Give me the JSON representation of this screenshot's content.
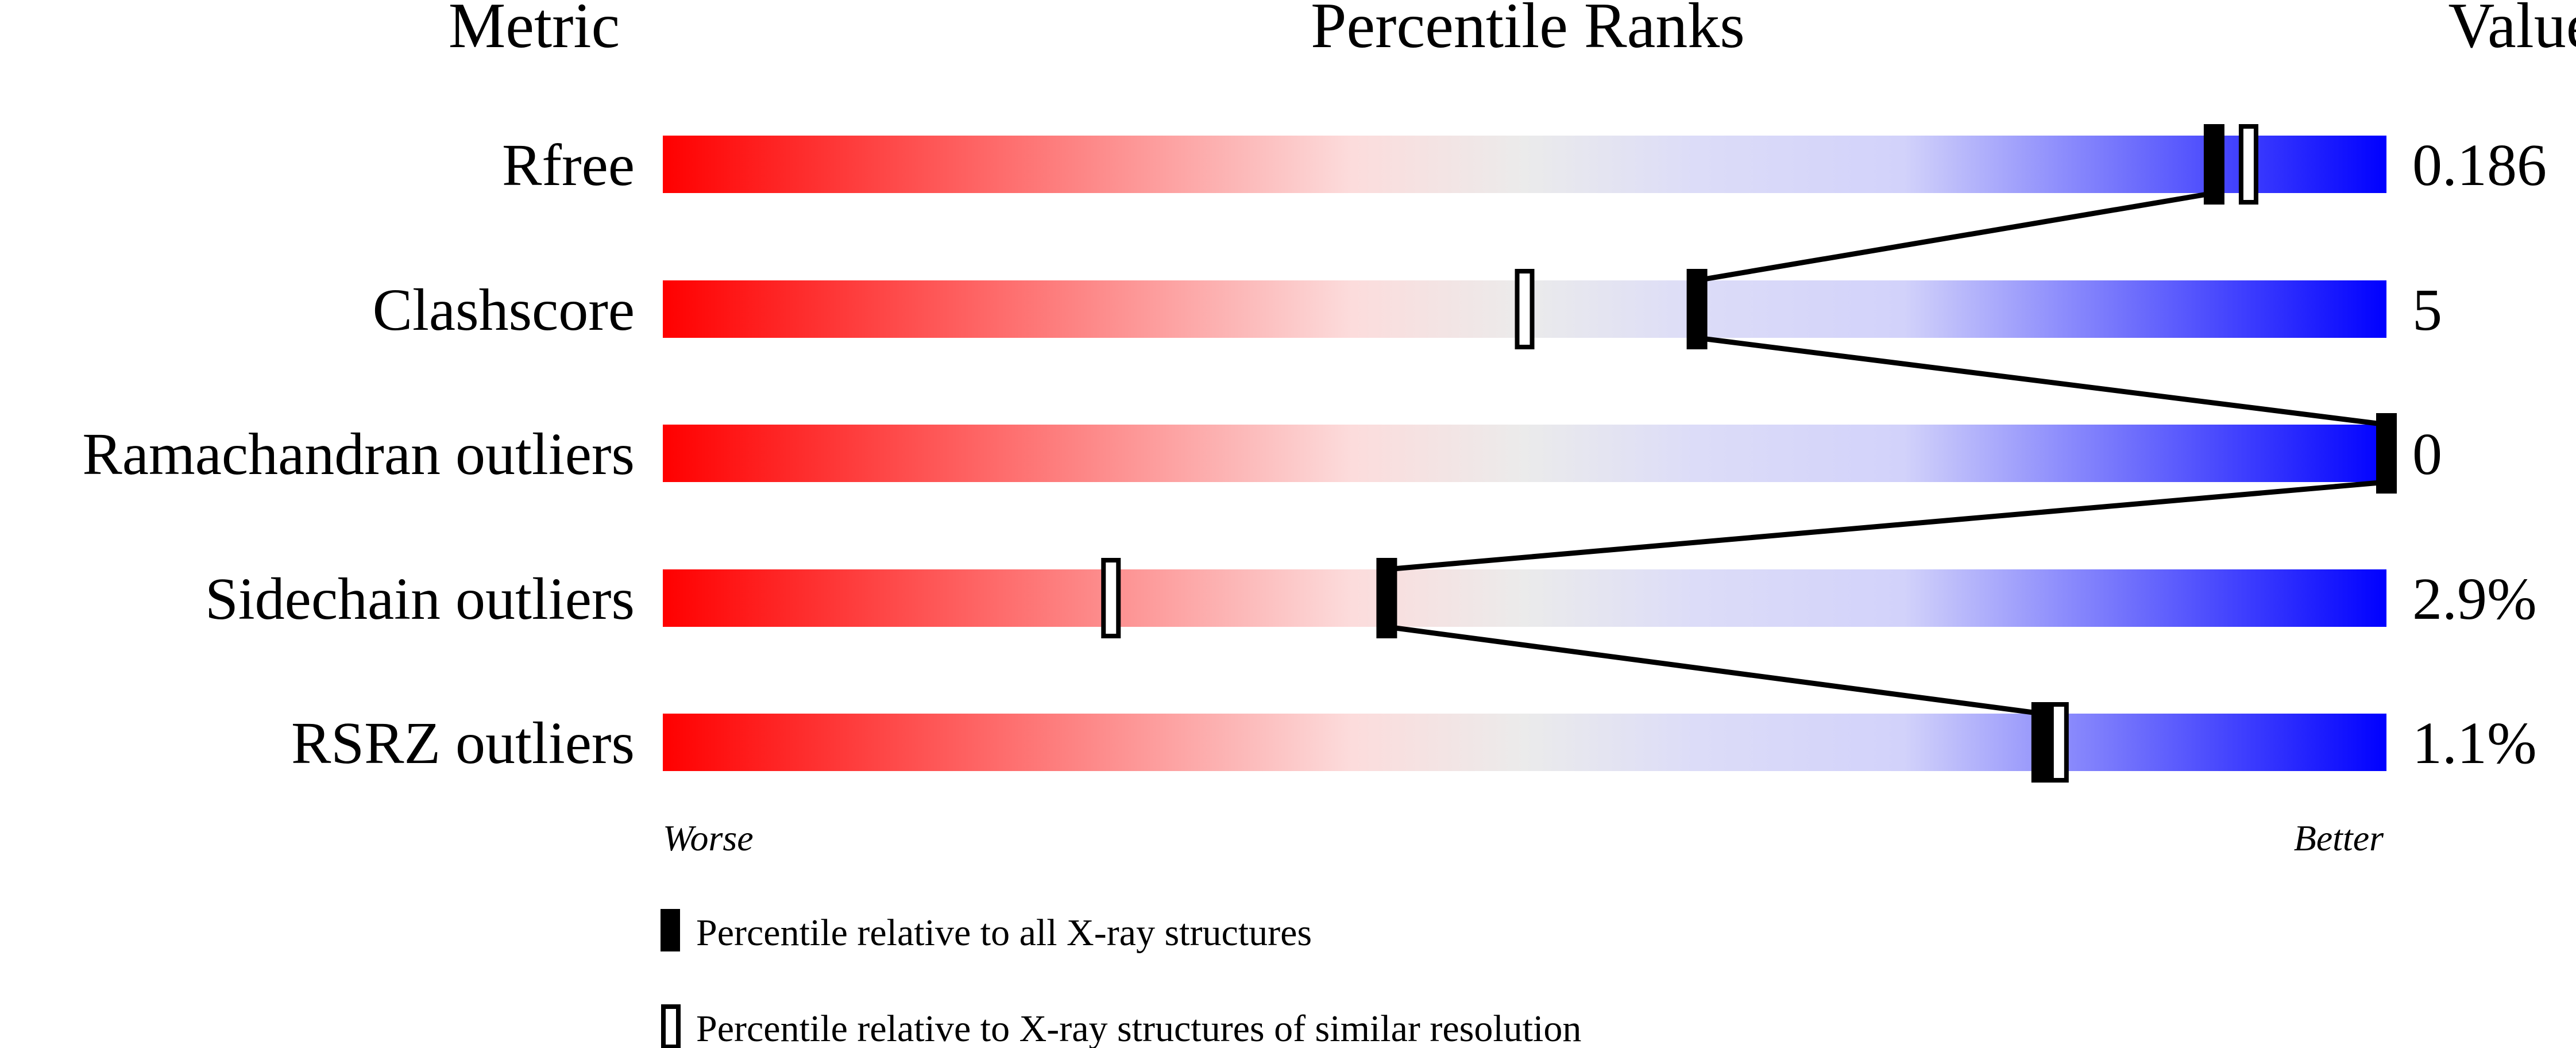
{
  "chart_data": {
    "type": "bar",
    "headers": {
      "metric": "Metric",
      "percentile": "Percentile Ranks",
      "value": "Value"
    },
    "categories": [
      "Rfree",
      "Clashscore",
      "Ramachandran outliers",
      "Sidechain outliers",
      "RSRZ outliers"
    ],
    "values": [
      "0.186",
      "5",
      "0",
      "2.9%",
      "1.1%"
    ],
    "series": [
      {
        "name": "Percentile relative to all X-ray structures",
        "marker": "filled",
        "percentiles": [
          90,
          60,
          100,
          42,
          80
        ]
      },
      {
        "name": "Percentile relative to X-ray structures of similar resolution",
        "marker": "open",
        "percentiles": [
          92,
          50,
          null,
          26,
          81
        ]
      }
    ],
    "xlim": [
      0,
      100
    ],
    "axis_labels": {
      "left": "Worse",
      "right": "Better"
    },
    "gradient_colors": [
      "#ff0000",
      "#fcdcdc",
      "#ebebeb",
      "#dcdcf8",
      "#d2d2fa",
      "#0000ff"
    ]
  }
}
